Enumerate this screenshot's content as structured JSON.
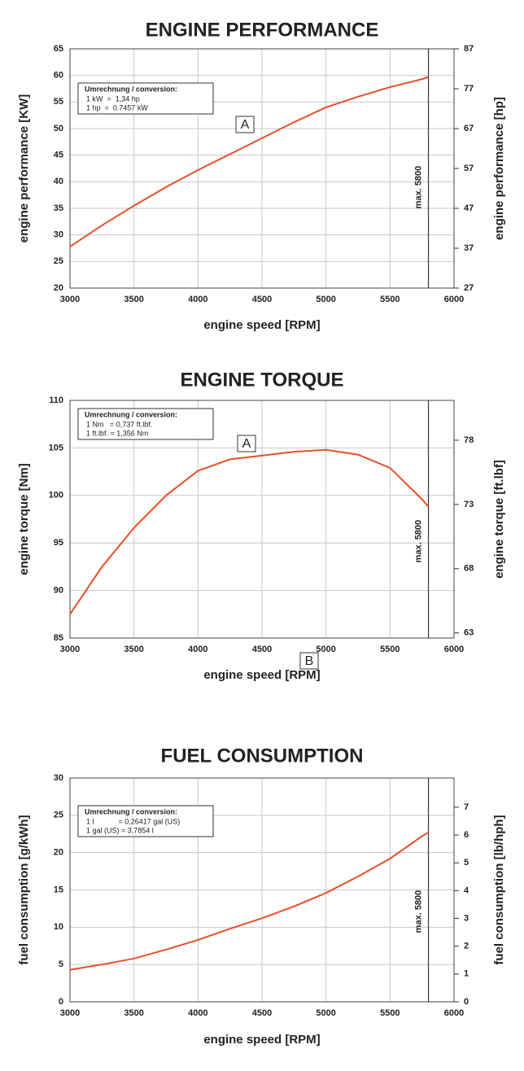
{
  "chart_data": [
    {
      "type": "line",
      "title": "ENGINE PERFORMANCE",
      "x_label": "engine speed [RPM]",
      "y_label": "engine performance [KW]",
      "y2_label": "engine performance [hp]",
      "x": [
        3000,
        3250,
        3500,
        3750,
        4000,
        4250,
        4500,
        4750,
        5000,
        5250,
        5500,
        5750,
        5800
      ],
      "series": [
        {
          "color": "#e8502a",
          "values": [
            27.8,
            31.8,
            35.5,
            39.0,
            42.2,
            45.2,
            48.2,
            51.2,
            54.0,
            56.0,
            57.8,
            59.3,
            59.7
          ]
        }
      ],
      "xlim": [
        3000,
        6000
      ],
      "xticks": [
        3000,
        3500,
        4000,
        4500,
        5000,
        5500,
        6000
      ],
      "ylim": [
        20,
        65
      ],
      "yticks": [
        20,
        25,
        30,
        35,
        40,
        45,
        50,
        55,
        60,
        65
      ],
      "y2lim": [
        27,
        87
      ],
      "y2ticks": [
        27,
        37,
        47,
        57,
        67,
        77,
        87
      ],
      "grid": true,
      "limit": {
        "x": 5800,
        "label": "max. 5800"
      },
      "marker_label": "A",
      "conversion_title": "Umrechnung / conversion:",
      "conversion_lines": [
        "1 kW  =  1,34 hp",
        "1 hp  =  0.7457 kW"
      ]
    },
    {
      "type": "line",
      "title": "ENGINE TORQUE",
      "x_label": "engine speed [RPM]",
      "y_label": "engine torque [Nm]",
      "y2_label": "engine torque [ft.lbf]",
      "x": [
        3000,
        3250,
        3500,
        3750,
        4000,
        4250,
        4500,
        4750,
        5000,
        5250,
        5500,
        5750,
        5800
      ],
      "series": [
        {
          "color": "#e8502a",
          "values": [
            87.5,
            92.5,
            96.6,
            100.0,
            102.6,
            103.8,
            104.2,
            104.6,
            104.8,
            104.3,
            102.9,
            99.6,
            98.8
          ]
        }
      ],
      "xlim": [
        3000,
        6000
      ],
      "xticks": [
        3000,
        3500,
        4000,
        4500,
        5000,
        5500,
        6000
      ],
      "ylim": [
        85,
        110
      ],
      "yticks": [
        85,
        90,
        95,
        100,
        105,
        110
      ],
      "y2lim": [
        62.6,
        81.1
      ],
      "y2ticks": [
        63,
        68,
        73,
        78
      ],
      "grid": true,
      "limit": {
        "x": 5800,
        "label": "max. 5800"
      },
      "marker_label": "A",
      "conversion_title": "Umrechnung / conversion:",
      "conversion_lines": [
        "1 Nm   = 0,737 ft.lbf.",
        "1 ft.lbf. = 1,356 Nm"
      ]
    },
    {
      "type": "line",
      "title": "FUEL CONSUMPTION",
      "x_label": "engine speed [RPM]",
      "y_label": "fuel consumption [g/kWh]",
      "y2_label": "fuel consumption [lb/hph]",
      "x": [
        3000,
        3250,
        3500,
        3750,
        4000,
        4250,
        4500,
        4750,
        5000,
        5250,
        5500,
        5750,
        5800
      ],
      "series": [
        {
          "color": "#e8502a",
          "values": [
            4.3,
            5.0,
            5.8,
            7.0,
            8.3,
            9.8,
            11.2,
            12.8,
            14.6,
            16.8,
            19.2,
            22.2,
            22.7
          ]
        }
      ],
      "xlim": [
        3000,
        6000
      ],
      "xticks": [
        3000,
        3500,
        4000,
        4500,
        5000,
        5500,
        6000
      ],
      "ylim": [
        0,
        30
      ],
      "yticks": [
        0,
        5,
        10,
        15,
        20,
        25,
        30
      ],
      "y2lim": [
        0,
        8.05
      ],
      "y2ticks": [
        0,
        1,
        2,
        3,
        4,
        5,
        6,
        7
      ],
      "grid": true,
      "limit": {
        "x": 5800,
        "label": "max. 5800"
      },
      "marker_label": "B",
      "conversion_title": "Umrechnung / conversion:",
      "conversion_lines": [
        "1 l            = 0,26417 gal (US)",
        "1 gal (US) = 3,7854 l"
      ]
    }
  ]
}
